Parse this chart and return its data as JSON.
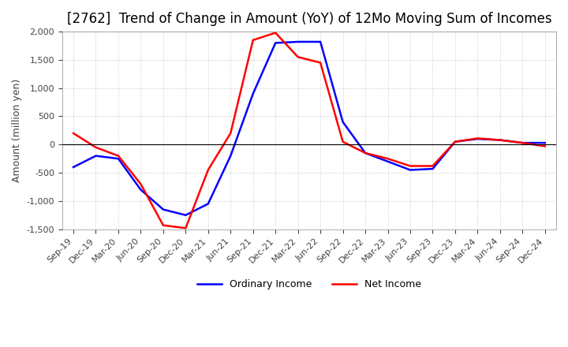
{
  "title": "[2762]  Trend of Change in Amount (YoY) of 12Mo Moving Sum of Incomes",
  "ylabel": "Amount (million yen)",
  "ylim": [
    -1500,
    2000
  ],
  "yticks": [
    -1500,
    -1000,
    -500,
    0,
    500,
    1000,
    1500,
    2000
  ],
  "x_labels": [
    "Sep-19",
    "Dec-19",
    "Mar-20",
    "Jun-20",
    "Sep-20",
    "Dec-20",
    "Mar-21",
    "Jun-21",
    "Sep-21",
    "Dec-21",
    "Mar-22",
    "Jun-22",
    "Sep-22",
    "Dec-22",
    "Mar-23",
    "Jun-23",
    "Sep-23",
    "Dec-23",
    "Mar-24",
    "Jun-24",
    "Sep-24",
    "Dec-24"
  ],
  "ordinary_income": [
    -400,
    -200,
    -250,
    -800,
    -1150,
    -1250,
    -1050,
    -200,
    900,
    1800,
    1820,
    1820,
    400,
    -150,
    -300,
    -450,
    -430,
    50,
    100,
    80,
    30,
    30
  ],
  "net_income": [
    200,
    -50,
    -200,
    -700,
    -1430,
    -1480,
    -450,
    200,
    1850,
    1980,
    1550,
    1450,
    50,
    -150,
    -250,
    -380,
    -380,
    50,
    110,
    80,
    30,
    -30
  ],
  "ordinary_color": "#0000ff",
  "net_color": "#ff0000",
  "line_width": 1.8,
  "grid_color": "#aaaaaa",
  "background_color": "#ffffff",
  "title_fontsize": 12,
  "legend_labels": [
    "Ordinary Income",
    "Net Income"
  ]
}
